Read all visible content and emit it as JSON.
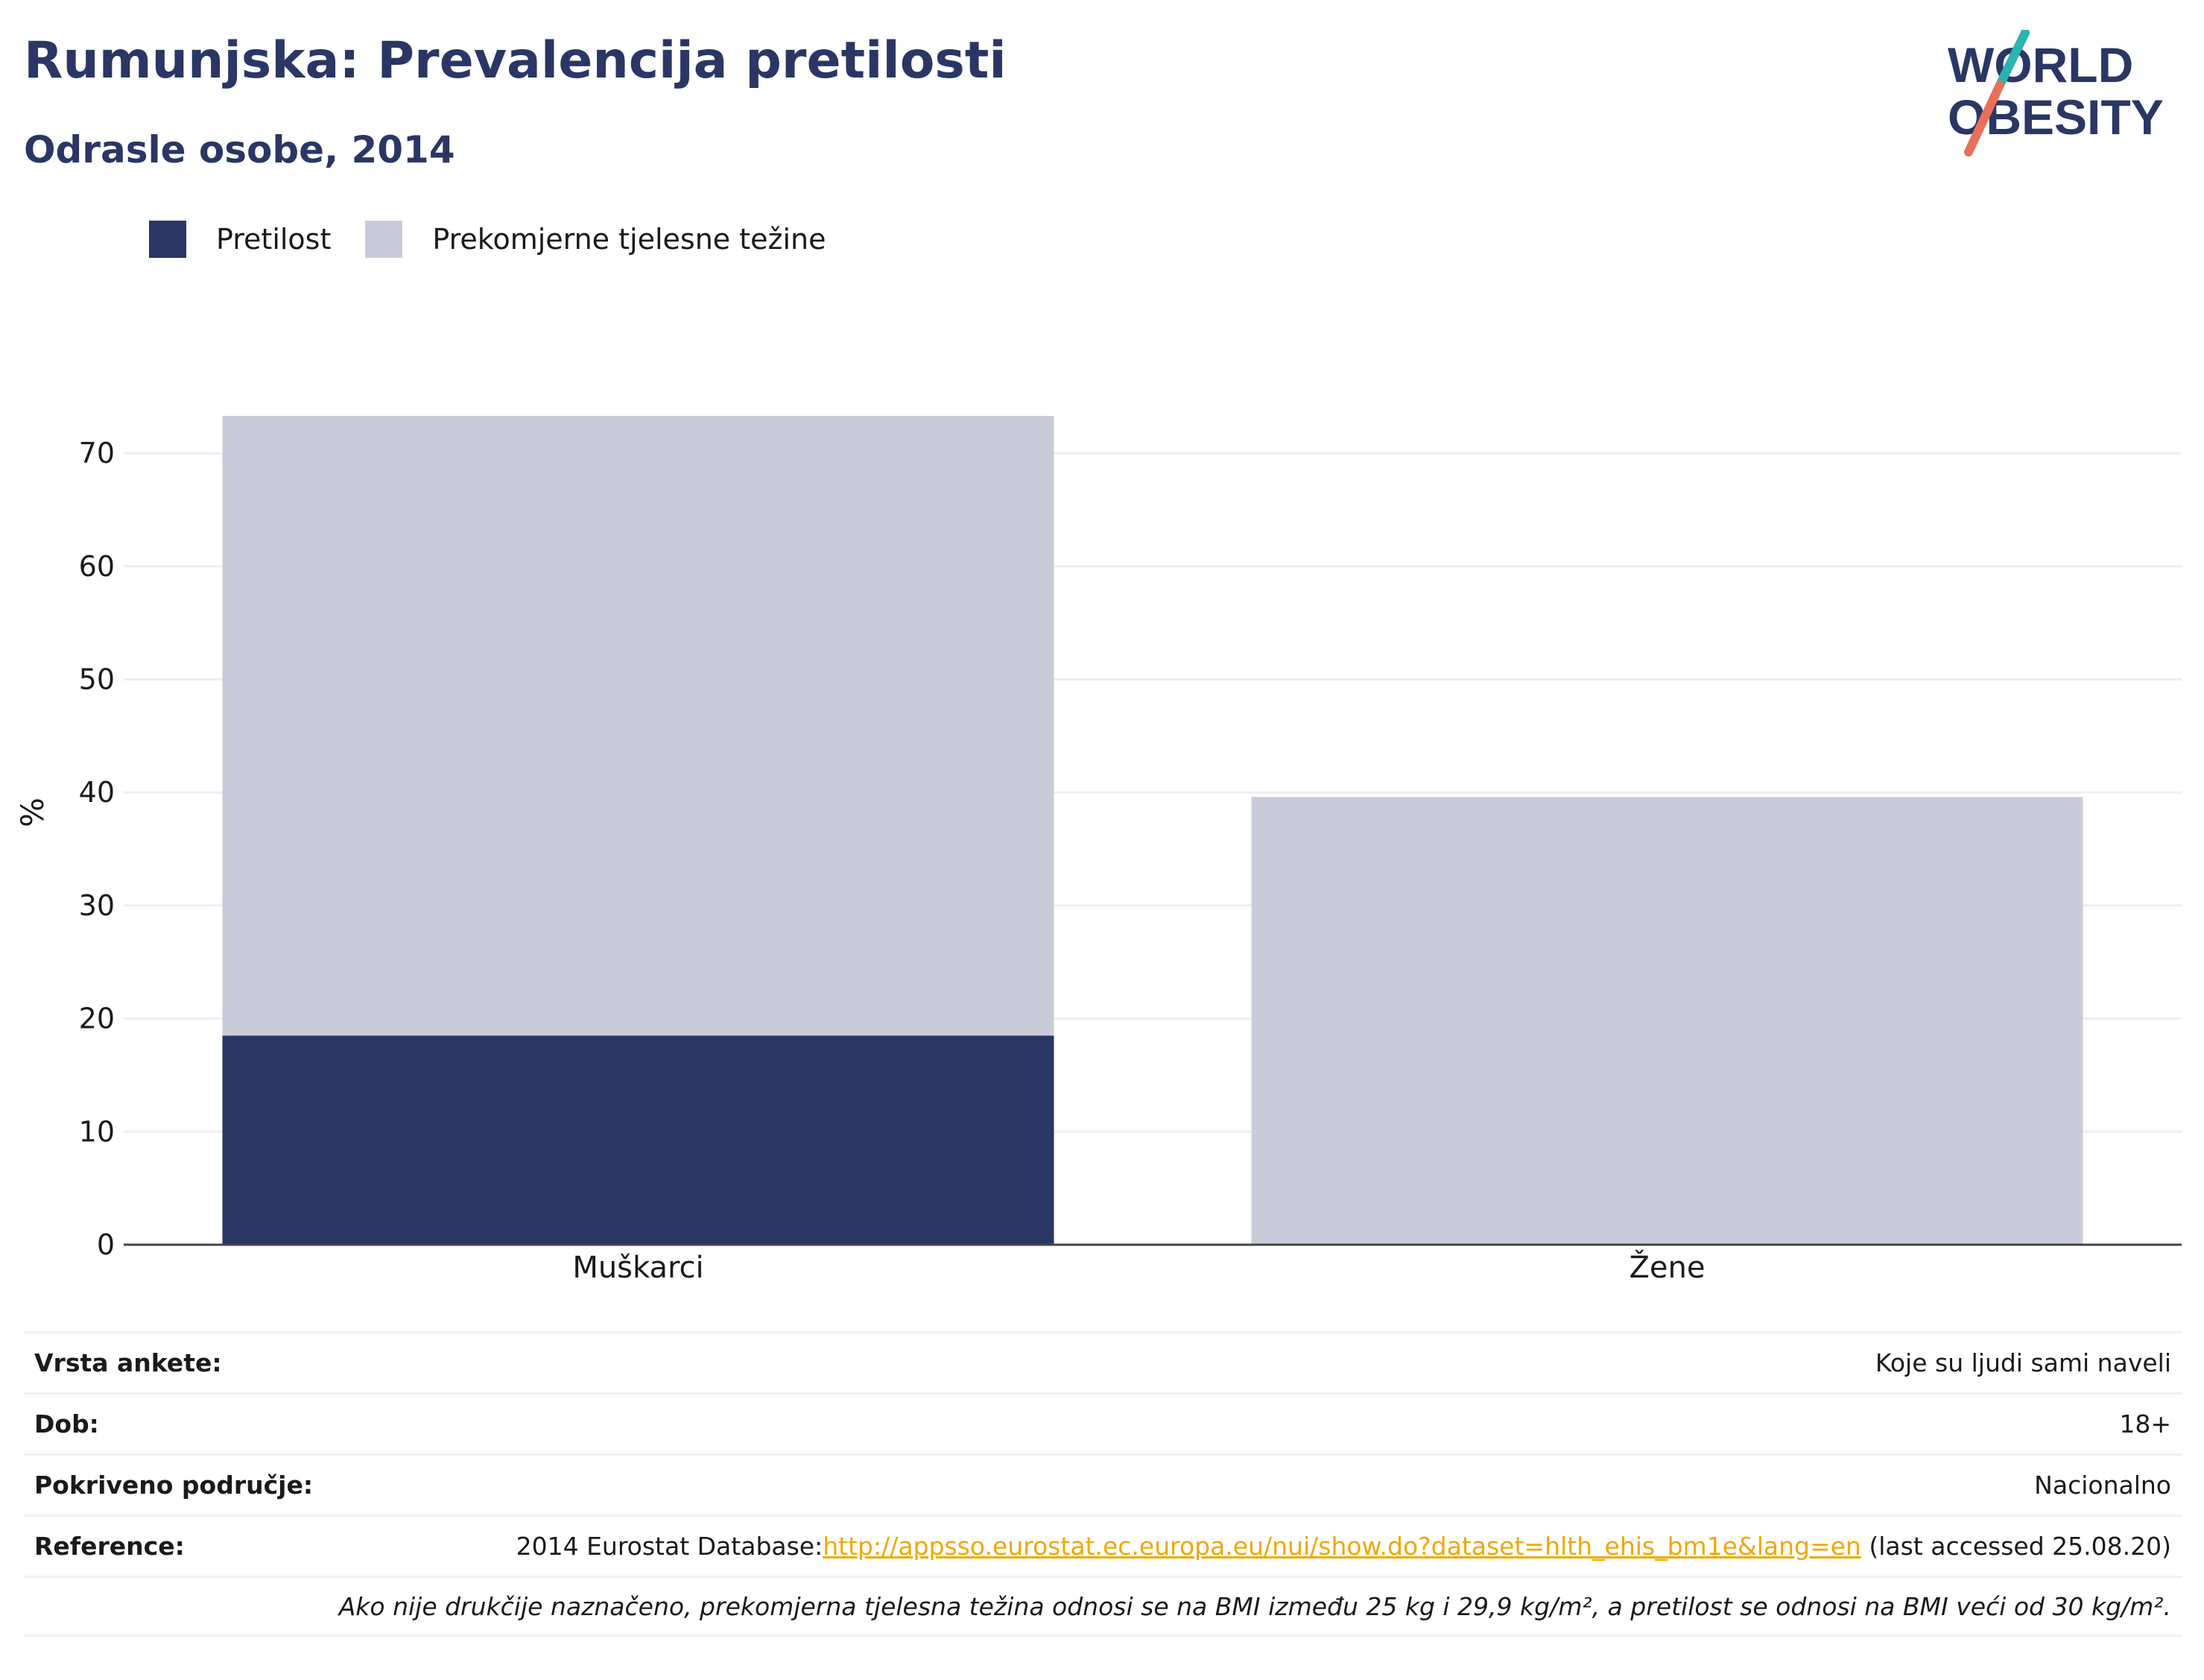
{
  "header": {
    "title": "Rumunjska: Prevalencija pretilosti",
    "subtitle": "Odrasle osobe, 2014"
  },
  "logo": {
    "line1": "WORLD",
    "line2": "OBESITY",
    "colors": {
      "text": "#2a3664",
      "slash_top": "#2bb3b1",
      "slash_bottom": "#e8705a"
    }
  },
  "legend": [
    {
      "label": "Pretilost",
      "color": "#2a3664"
    },
    {
      "label": "Prekomjerne tjelesne težine",
      "color": "#c9ccd8"
    }
  ],
  "chart_data": {
    "type": "bar",
    "stacked": true,
    "categories": [
      "Muškarci",
      "Žene"
    ],
    "series": [
      {
        "name": "Pretilost",
        "values": [
          18.5,
          null
        ],
        "color": "#2a3664"
      },
      {
        "name": "Prekomjerne tjelesne težine",
        "values": [
          54.8,
          39.6
        ],
        "color": "#c9ccd8"
      }
    ],
    "ylabel": "%",
    "ylim": [
      0,
      75
    ],
    "yticks": [
      0,
      10,
      20,
      30,
      40,
      50,
      60,
      70
    ],
    "grid": true,
    "legend_position": "top-left"
  },
  "info": {
    "rows": [
      {
        "label": "Vrsta ankete:",
        "value": "Koje su ljudi sami naveli"
      },
      {
        "label": "Dob:",
        "value": "18+"
      },
      {
        "label": "Pokriveno područje:",
        "value": "Nacionalno"
      }
    ],
    "reference": {
      "label": "Reference:",
      "prefix": "2014 Eurostat Database:",
      "link": "http://appsso.eurostat.ec.europa.eu/nui/show.do?dataset=hlth_ehis_bm1e&lang=en",
      "suffix": " (last accessed 25.08.20)"
    },
    "note": "Ako nije drukčije naznačeno, prekomjerna tjelesna težina odnosi se na BMI između 25 kg i 29,9 kg/m², a pretilost se odnosi na BMI veći od 30 kg/m²."
  }
}
